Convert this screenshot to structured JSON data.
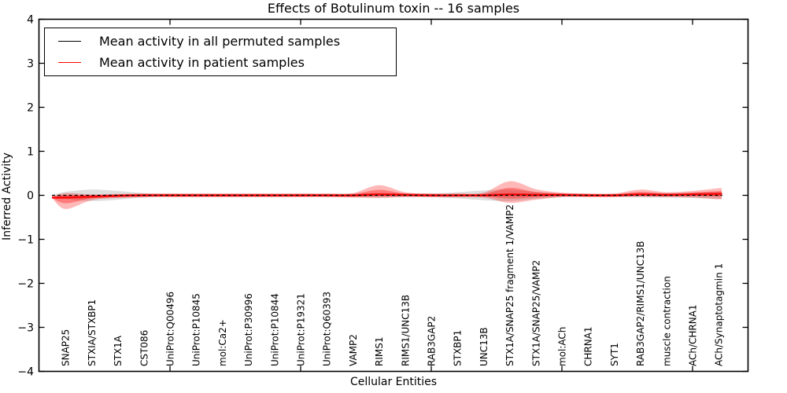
{
  "chart_data": {
    "type": "line",
    "title": "Effects of Botulinum toxin -- 16 samples",
    "xlabel": "Cellular Entities",
    "ylabel": "Inferred Activity",
    "ylim": [
      -4,
      4
    ],
    "yticks": [
      4,
      3,
      2,
      1,
      0,
      -1,
      -2,
      -3,
      -4
    ],
    "xticks_numeric": [
      5,
      10,
      15,
      20,
      25
    ],
    "grid": false,
    "legend_position": "upper left",
    "categories": [
      "SNAP25",
      "STXIA/STXBP1",
      "STX1A",
      "CST086",
      "UniProt:Q00496",
      "UniProt:P10845",
      "mol:Ca2+",
      "UniProt:P30996",
      "UniProt:P10844",
      "UniProt:P19321",
      "UniProt:Q60393",
      "VAMP2",
      "RIMS1",
      "RIMS1/UNC13B",
      "RAB3GAP2",
      "STXBP1",
      "UNC13B",
      "STX1A/SNAP25 fragment 1/VAMP2",
      "STX1A/SNAP25/VAMP2",
      "mol:ACh",
      "CHRNA1",
      "SYT1",
      "RAB3GAP2/RIMS1/UNC13B",
      "muscle contraction",
      "ACh/CHRNA1",
      "ACh/Synaptotagmin 1"
    ],
    "series": [
      {
        "name": "Mean activity in all permuted samples",
        "color": "#000000",
        "line_style": "dashed",
        "values": [
          0,
          0,
          0,
          0,
          0,
          0,
          0,
          0,
          0,
          0,
          0,
          0,
          0,
          0,
          0,
          0,
          0,
          0,
          0,
          0,
          0,
          0,
          0,
          0,
          0,
          0
        ],
        "spread": [
          0.08,
          0.13,
          0.1,
          0.05,
          0.03,
          0.03,
          0.03,
          0.03,
          0.03,
          0.03,
          0.03,
          0.04,
          0.05,
          0.04,
          0.04,
          0.07,
          0.11,
          0.13,
          0.08,
          0.04,
          0.03,
          0.03,
          0.05,
          0.05,
          0.06,
          0.08
        ]
      },
      {
        "name": "Mean activity in patient samples",
        "color": "#ff0000",
        "line_style": "solid",
        "values": [
          -0.05,
          -0.03,
          -0.01,
          0,
          0,
          0,
          0,
          0,
          0,
          0,
          0,
          0,
          0.02,
          0.01,
          0,
          0,
          0,
          0.02,
          0.01,
          0.01,
          0,
          0,
          0.02,
          0.01,
          0.02,
          0.03
        ],
        "spread_upper": [
          0.1,
          0.05,
          0.04,
          0.04,
          0.04,
          0.04,
          0.04,
          0.04,
          0.04,
          0.04,
          0.04,
          0.05,
          0.21,
          0.06,
          0.04,
          0.04,
          0.06,
          0.3,
          0.13,
          0.05,
          0.04,
          0.04,
          0.11,
          0.06,
          0.08,
          0.13
        ],
        "spread_lower": [
          0.26,
          0.08,
          0.05,
          0.04,
          0.04,
          0.04,
          0.04,
          0.04,
          0.04,
          0.04,
          0.04,
          0.05,
          0.08,
          0.05,
          0.04,
          0.04,
          0.05,
          0.19,
          0.11,
          0.05,
          0.04,
          0.04,
          0.05,
          0.05,
          0.07,
          0.12
        ]
      }
    ],
    "colors": {
      "permuted_line": "#000000",
      "patient_line": "#ff0000",
      "patient_fill": "rgba(255,0,0,0.28)",
      "permuted_fill": "rgba(0,0,0,0.13)",
      "frame": "#000000"
    }
  }
}
